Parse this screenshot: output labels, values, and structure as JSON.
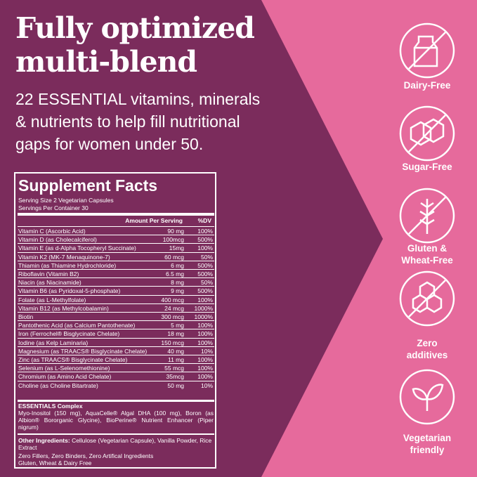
{
  "headline": [
    "Fully optimized",
    "multi-blend"
  ],
  "intro": [
    "22 ESSENTIAL vitamins, minerals",
    "& nutrients to help fill nutritional",
    "gaps for women under 50."
  ],
  "supplement_facts": {
    "title": "Supplement Facts",
    "serving_size": "Serving Size 2 Vegetarian Capsules",
    "servings_per_container": "Servings Per Container 30",
    "header_amount": "Amount Per Serving",
    "header_dv": "%DV",
    "rows": [
      [
        "Vitamin C (Ascorbic Acid)",
        "90 mg",
        "100%"
      ],
      [
        "Vitamin D (as Cholecalciferol)",
        "100mcg",
        "500%"
      ],
      [
        "Vitamin E (as d-Alpha Tocopheryl Succinate)",
        "15mg",
        "100%"
      ],
      [
        "Vitamin K2 (MK-7 Menaquinone-7)",
        "60 mcg",
        "50%"
      ],
      [
        "Thiamin (as Thiamine Hydrochloride)",
        "6 mg",
        "500%"
      ],
      [
        "Riboflavin (Vitamin B2)",
        "6.5 mg",
        "500%"
      ],
      [
        "Niacin (as Niacinamide)",
        "8 mg",
        "50%"
      ],
      [
        "Vitamin B6 (as Pyridoxal-5-phosphate)",
        "9 mg",
        "500%"
      ],
      [
        "Folate (as L-Methylfolate)",
        "400 mcg",
        "100%"
      ],
      [
        "Vitamin B12 (as Methylcobalamin)",
        "24 mcg",
        "1000%"
      ],
      [
        "Biotin",
        "300 mcg",
        "1000%"
      ],
      [
        "Pantothenic Acid (as Calcium Pantothenate)",
        "5 mg",
        "100%"
      ],
      [
        "Iron (Ferrochel® Bisglycinate Chelate)",
        "18 mg",
        "100%"
      ],
      [
        "Iodine (as Kelp Laminaria)",
        "150 mcg",
        "100%"
      ],
      [
        "Magnesium (as TRAACS® Bisglycinate Chelate)",
        "40 mg",
        "10%"
      ],
      [
        "Zinc (as TRAACS® Bisglycinate Chelate)",
        "11 mg",
        "100%"
      ],
      [
        "Selenium (as L-Selenomethionine)",
        "55 mcg",
        "100%"
      ],
      [
        "Chromium (as Amino Acid Chelate)",
        "35mcg",
        "100%"
      ],
      [
        "Choline (as Choline Bitartrate)",
        "50 mg",
        "10%"
      ]
    ],
    "complex_title": "ESSENTIALS Complex",
    "complex_text": "Myo-Inositol (150 mg), AquaCelle® Algal DHA (100 mg), Boron (as Albion® Bororganic Glycine), BioPerine® Nutrient Enhancer (Piper nigrum)",
    "other_label": "Other Ingredients:",
    "other_text": "Cellulose (Vegetarian Capsule), Vanilla Powder, Rice Extract",
    "free_from": [
      "Zero Fillers, Zero Binders, Zero Artifical Ingredients",
      "Gluten, Wheat & Dairy Free"
    ]
  },
  "badges": [
    [
      "Dairy-Free"
    ],
    [
      "Sugar-Free"
    ],
    [
      "Gluten &",
      "Wheat-Free"
    ],
    [
      "Zero",
      "additives"
    ],
    [
      "Vegetarian",
      "friendly"
    ]
  ]
}
